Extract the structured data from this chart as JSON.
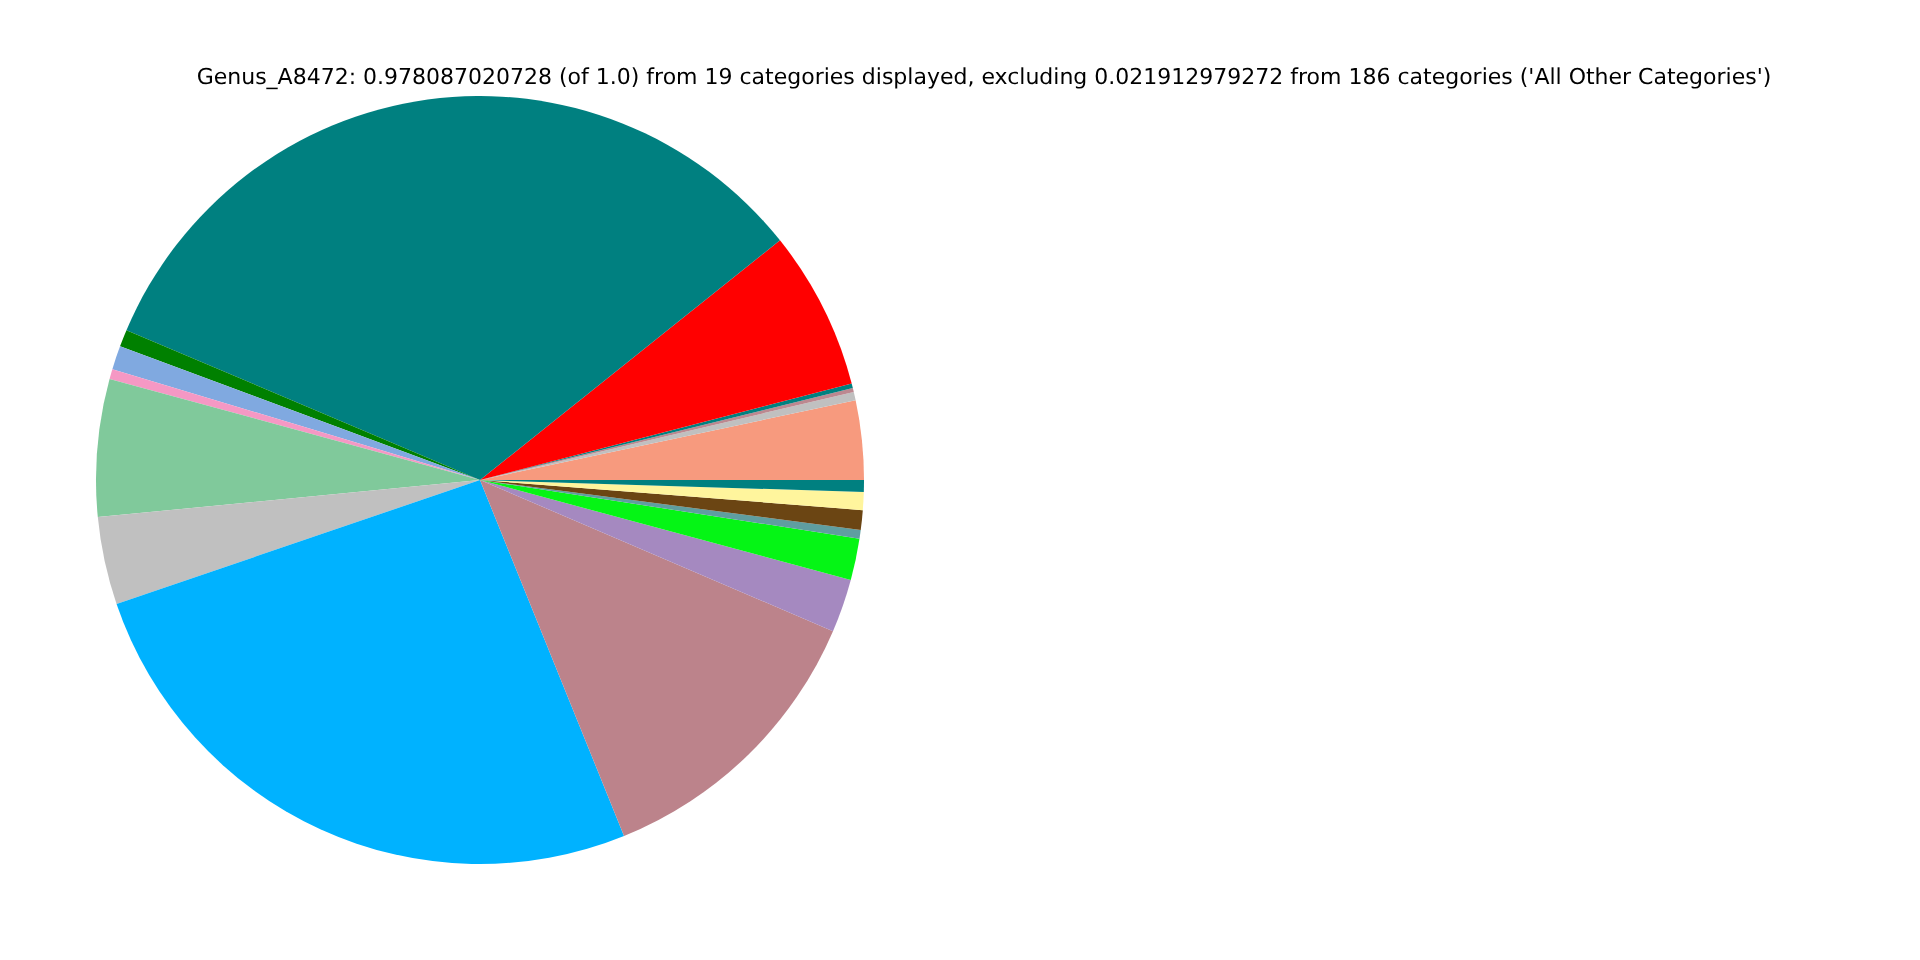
{
  "chart_data": {
    "type": "pie",
    "title": "Genus_A8472: 0.978087020728 (of 1.0) from 19 categories displayed, excluding 0.021912979272 from 186 categories ('All Other Categories')",
    "categories": [
      null,
      null,
      null,
      null,
      null,
      null,
      null,
      null,
      null,
      null,
      null,
      null,
      null,
      null,
      null,
      null,
      null,
      null,
      null
    ],
    "values": [
      3.33,
      0.35,
      0.17,
      0.19,
      6.69,
      32.89,
      0.72,
      1.0,
      0.42,
      5.78,
      3.69,
      25.89,
      12.44,
      2.25,
      1.75,
      0.36,
      0.83,
      0.75,
      0.5
    ],
    "colors": [
      "#f79a7e",
      "#c0c0c0",
      "#bc8890",
      "#008080",
      "#ff0000",
      "#008080",
      "#008000",
      "#80a9e0",
      "#f598c4",
      "#80c99b",
      "#c0c0c0",
      "#00b2ff",
      "#bc838b",
      "#a589c0",
      "#05f515",
      "#5f9ea0",
      "#6b4513",
      "#fff59d",
      "#008080"
    ],
    "legend": false
  }
}
